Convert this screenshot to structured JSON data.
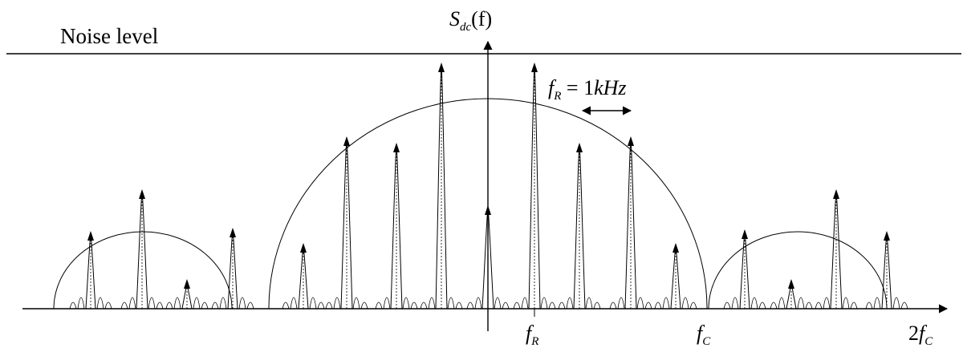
{
  "labels": {
    "noise_level": "Noise level",
    "y_axis_main": "S",
    "y_axis_sub": "dc",
    "y_axis_arg": "(f)",
    "fr_note_main": "f",
    "fr_note_sub": "R",
    "fr_note_eq": " = 1",
    "fr_note_unit": "kHz",
    "tick_fr_main": "f",
    "tick_fr_sub": "R",
    "tick_fc_main": "f",
    "tick_fc_sub": "C",
    "tick_2fc_coef": "2",
    "tick_2fc_main": "f",
    "tick_2fc_sub": "C"
  },
  "colors": {
    "ink": "#000000",
    "background": "#ffffff"
  }
}
